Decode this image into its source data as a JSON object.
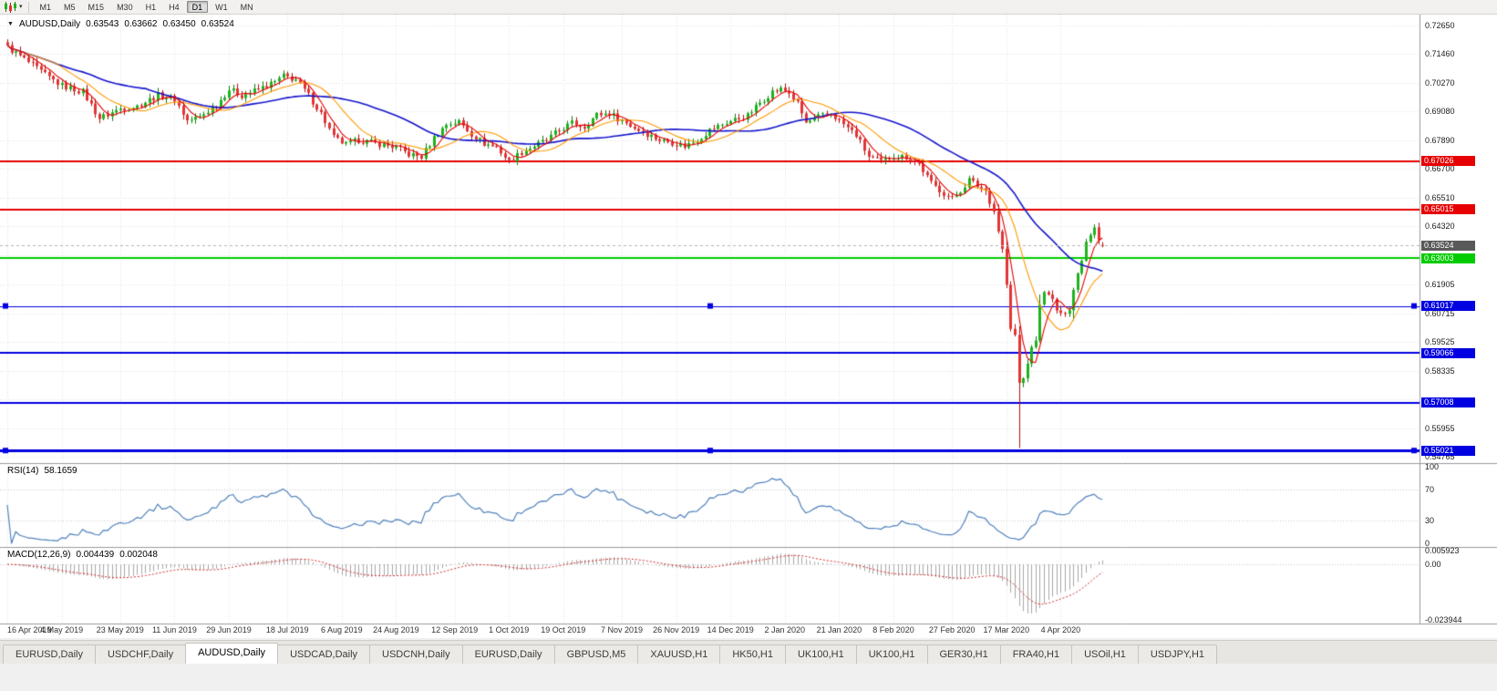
{
  "window": {
    "bg_color": "#f0f0f0"
  },
  "toolbar": {
    "chart_type_icon": "candlestick-chart",
    "dropdown_icon": "down-arrow",
    "timeframes": [
      "M1",
      "M5",
      "M15",
      "M30",
      "H1",
      "H4",
      "D1",
      "W1",
      "MN"
    ],
    "active_timeframe": "D1"
  },
  "chart": {
    "collapse_icon": "down-triangle",
    "title": {
      "symbol_period": "AUDUSD,Daily",
      "open": "0.63543",
      "high": "0.63662",
      "low": "0.63450",
      "close": "0.63524"
    },
    "price_scale_ticks": [
      "0.72650",
      "0.71460",
      "0.70270",
      "0.69080",
      "0.67890",
      "0.66700",
      "0.65510",
      "0.64320",
      "0.61905",
      "0.60715",
      "0.59525",
      "0.58335",
      "0.55955",
      "0.54765"
    ],
    "current_price": {
      "label": "0.63524",
      "value": 0.63524,
      "box_color": "#595959",
      "line_color": "#b4b4b4"
    },
    "hlines": [
      {
        "label": "0.67026",
        "value": 0.67026,
        "color": "#e60000",
        "width": 2,
        "selected": false
      },
      {
        "label": "0.65015",
        "value": 0.65015,
        "color": "#e60000",
        "width": 2,
        "selected": false
      },
      {
        "label": "0.63003",
        "value": 0.63003,
        "color": "#00cc00",
        "width": 2,
        "selected": false
      },
      {
        "label": "0.61017",
        "value": 0.61017,
        "color": "#0000e0",
        "width": 1,
        "selected": true
      },
      {
        "label": "0.59066",
        "value": 0.59066,
        "color": "#0000e0",
        "width": 2,
        "selected": false
      },
      {
        "label": "0.57008",
        "value": 0.57008,
        "color": "#0000e0",
        "width": 2,
        "selected": false
      },
      {
        "label": "0.55021",
        "value": 0.55021,
        "color": "#0000e0",
        "width": 3,
        "selected": true
      }
    ],
    "date_labels": [
      {
        "label": "16 Apr 2019",
        "bar": 0
      },
      {
        "label": "4 May 2019",
        "bar": 13
      },
      {
        "label": "23 May 2019",
        "bar": 27
      },
      {
        "label": "11 Jun 2019",
        "bar": 40
      },
      {
        "label": "29 Jun 2019",
        "bar": 53
      },
      {
        "label": "18 Jul 2019",
        "bar": 67
      },
      {
        "label": "6 Aug 2019",
        "bar": 80
      },
      {
        "label": "24 Aug 2019",
        "bar": 93
      },
      {
        "label": "12 Sep 2019",
        "bar": 107
      },
      {
        "label": "1 Oct 2019",
        "bar": 120
      },
      {
        "label": "19 Oct 2019",
        "bar": 133
      },
      {
        "label": "7 Nov 2019",
        "bar": 147
      },
      {
        "label": "26 Nov 2019",
        "bar": 160
      },
      {
        "label": "14 Dec 2019",
        "bar": 173
      },
      {
        "label": "2 Jan 2020",
        "bar": 186
      },
      {
        "label": "21 Jan 2020",
        "bar": 199
      },
      {
        "label": "8 Feb 2020",
        "bar": 212
      },
      {
        "label": "27 Feb 2020",
        "bar": 226
      },
      {
        "label": "17 Mar 2020",
        "bar": 239
      },
      {
        "label": "4 Apr 2020",
        "bar": 252
      }
    ]
  },
  "rsi": {
    "label": "RSI(14)",
    "value": "58.1659",
    "scale": [
      "100",
      "70",
      "30",
      "0"
    ],
    "levels": [
      70,
      30
    ],
    "line_color": "#4f81bd"
  },
  "macd": {
    "label": "MACD(12,26,9)",
    "value_main": "0.004439",
    "value_signal": "0.002048",
    "scale": [
      "0.005923",
      "0.00",
      "-0.023944"
    ],
    "histogram_color": "#a8a8a8",
    "signal_color": "#d03030"
  },
  "tabs": {
    "items": [
      "EURUSD,Daily",
      "USDCHF,Daily",
      "AUDUSD,Daily",
      "USDCAD,Daily",
      "USDCNH,Daily",
      "EURUSD,Daily",
      "GBPUSD,M5",
      "XAUUSD,H1",
      "HK50,H1",
      "UK100,H1",
      "UK100,H1",
      "GER30,H1",
      "FRA40,H1",
      "USOil,H1",
      "USDJPY,H1"
    ],
    "active_index": 2
  },
  "chart_data": {
    "type": "candlestick",
    "symbol": "AUDUSD",
    "period": "Daily",
    "ohlc_current": {
      "open": 0.63543,
      "high": 0.63662,
      "low": 0.6345,
      "close": 0.63524
    },
    "price_axis": {
      "top": 0.731,
      "bottom": 0.545
    },
    "price_grid_hidden": [
      0.63115,
      0.57145
    ],
    "bars_total": 263,
    "close_anchors": [
      [
        0,
        0.7175
      ],
      [
        4,
        0.7125
      ],
      [
        9,
        0.706
      ],
      [
        13,
        0.7015
      ],
      [
        18,
        0.699
      ],
      [
        22,
        0.688
      ],
      [
        24,
        0.6895
      ],
      [
        27,
        0.692
      ],
      [
        31,
        0.693
      ],
      [
        36,
        0.6975
      ],
      [
        40,
        0.696
      ],
      [
        43,
        0.687
      ],
      [
        46,
        0.6885
      ],
      [
        50,
        0.6935
      ],
      [
        53,
        0.7
      ],
      [
        56,
        0.6975
      ],
      [
        60,
        0.7
      ],
      [
        64,
        0.703
      ],
      [
        66,
        0.7055
      ],
      [
        69,
        0.704
      ],
      [
        72,
        0.6975
      ],
      [
        75,
        0.69
      ],
      [
        78,
        0.68
      ],
      [
        81,
        0.677
      ],
      [
        84,
        0.679
      ],
      [
        87,
        0.678
      ],
      [
        90,
        0.677
      ],
      [
        93,
        0.676
      ],
      [
        96,
        0.673
      ],
      [
        99,
        0.672
      ],
      [
        102,
        0.68
      ],
      [
        105,
        0.6855
      ],
      [
        108,
        0.6865
      ],
      [
        111,
        0.6815
      ],
      [
        114,
        0.6775
      ],
      [
        117,
        0.676
      ],
      [
        120,
        0.67
      ],
      [
        123,
        0.674
      ],
      [
        126,
        0.6765
      ],
      [
        129,
        0.679
      ],
      [
        132,
        0.683
      ],
      [
        135,
        0.686
      ],
      [
        138,
        0.6845
      ],
      [
        141,
        0.6895
      ],
      [
        144,
        0.69
      ],
      [
        147,
        0.687
      ],
      [
        150,
        0.684
      ],
      [
        153,
        0.6815
      ],
      [
        156,
        0.679
      ],
      [
        159,
        0.678
      ],
      [
        162,
        0.6765
      ],
      [
        165,
        0.679
      ],
      [
        168,
        0.683
      ],
      [
        171,
        0.6855
      ],
      [
        174,
        0.6875
      ],
      [
        177,
        0.689
      ],
      [
        180,
        0.6945
      ],
      [
        183,
        0.699
      ],
      [
        185,
        0.7
      ],
      [
        187,
        0.6985
      ],
      [
        189,
        0.694
      ],
      [
        191,
        0.686
      ],
      [
        194,
        0.6885
      ],
      [
        197,
        0.69
      ],
      [
        200,
        0.6855
      ],
      [
        203,
        0.681
      ],
      [
        206,
        0.672
      ],
      [
        209,
        0.67
      ],
      [
        212,
        0.6725
      ],
      [
        215,
        0.672
      ],
      [
        218,
        0.669
      ],
      [
        221,
        0.661
      ],
      [
        224,
        0.657
      ],
      [
        226,
        0.6545
      ],
      [
        228,
        0.658
      ],
      [
        230,
        0.6625
      ],
      [
        232,
        0.66
      ],
      [
        234,
        0.658
      ],
      [
        236,
        0.6495
      ],
      [
        238,
        0.6335
      ],
      [
        239,
        0.619
      ],
      [
        240,
        0.6
      ],
      [
        241,
        0.598
      ],
      [
        242,
        0.578
      ],
      [
        243,
        0.58
      ],
      [
        244,
        0.587
      ],
      [
        245,
        0.592
      ],
      [
        246,
        0.5965
      ],
      [
        247,
        0.61
      ],
      [
        248,
        0.617
      ],
      [
        249,
        0.614
      ],
      [
        250,
        0.6125
      ],
      [
        251,
        0.6085
      ],
      [
        252,
        0.606
      ],
      [
        253,
        0.608
      ],
      [
        254,
        0.6095
      ],
      [
        255,
        0.617
      ],
      [
        256,
        0.6235
      ],
      [
        257,
        0.63
      ],
      [
        258,
        0.637
      ],
      [
        259,
        0.6405
      ],
      [
        260,
        0.6435
      ],
      [
        261,
        0.6385
      ],
      [
        262,
        0.63524
      ]
    ],
    "spike_low": {
      "bar": 242,
      "low": 0.5513
    },
    "indicators": {
      "sma_fast_period": 5,
      "sma_fast_color": "#e60000",
      "sma_mid_period": 13,
      "sma_mid_color": "#ff9900",
      "sma_slow_period": 34,
      "sma_slow_color": "#1414cc",
      "rsi_period": 14,
      "rsi_value": 58.1659,
      "macd_fast": 12,
      "macd_slow": 26,
      "macd_signal": 9,
      "macd_value": 0.004439,
      "macd_signal_value": 0.002048
    },
    "candle_colors": {
      "up_fill": "#1db31d",
      "up_border": "#0d7f0d",
      "down_fill": "#e23434",
      "down_border": "#b01010"
    }
  }
}
